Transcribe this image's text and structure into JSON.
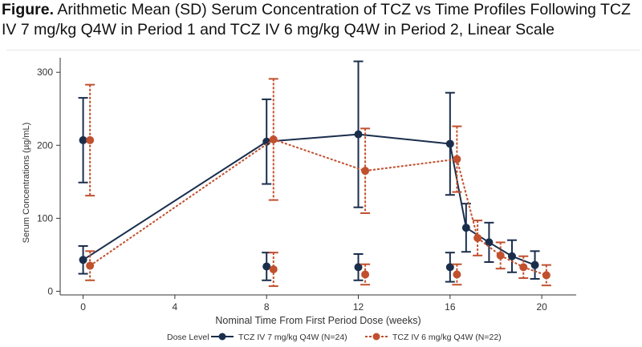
{
  "title_prefix": "Figure.",
  "title_text": "Arithmetic Mean (SD) Serum Concentration of TCZ vs Time Profiles Following TCZ IV 7 mg/kg Q4W in Period 1 and TCZ IV 6 mg/kg Q4W in Period 2, Linear Scale",
  "chart_data": {
    "type": "line",
    "xlabel": "Nominal Time From First Period Dose (weeks)",
    "ylabel": "Serum Concentrations (µg/mL)",
    "xlim": [
      -1,
      21.5
    ],
    "ylim": [
      -5,
      320
    ],
    "xticks": [
      0,
      4,
      8,
      12,
      16,
      20
    ],
    "yticks": [
      0,
      100,
      200,
      300
    ],
    "grid": false,
    "legend_title": "Dose Level",
    "legend_position": "bottom",
    "series": [
      {
        "name": "TCZ IV 7 mg/kg Q4W (N=24)",
        "color": "#1a2e4c",
        "line_style": "solid",
        "points": [
          {
            "x": 0,
            "y": 43,
            "sd": 19
          },
          {
            "x": 0,
            "y": 207,
            "sd": 58
          },
          {
            "x": 8,
            "y": 34,
            "sd": 19
          },
          {
            "x": 8,
            "y": 205,
            "sd": 58
          },
          {
            "x": 12,
            "y": 33,
            "sd": 18
          },
          {
            "x": 12,
            "y": 215,
            "sd": 100
          },
          {
            "x": 16,
            "y": 33,
            "sd": 20
          },
          {
            "x": 16,
            "y": 202,
            "sd": 70
          },
          {
            "x": 16.7,
            "y": 87,
            "sd": 33
          },
          {
            "x": 17.7,
            "y": 67,
            "sd": 27
          },
          {
            "x": 18.7,
            "y": 48,
            "sd": 22
          },
          {
            "x": 19.7,
            "y": 36,
            "sd": 19
          }
        ],
        "segments": [
          [
            0,
            3
          ],
          [
            3,
            5
          ],
          [
            5,
            7
          ],
          [
            7,
            8
          ],
          [
            8,
            9
          ],
          [
            9,
            10
          ],
          [
            10,
            11
          ]
        ]
      },
      {
        "name": "TCZ IV 6 mg/kg Q4W (N=22)",
        "color": "#c1502e",
        "line_style": "dotted",
        "points": [
          {
            "x": 0.3,
            "y": 35,
            "sd": 20
          },
          {
            "x": 0.3,
            "y": 207,
            "sd": 76
          },
          {
            "x": 8.3,
            "y": 30,
            "sd": 23
          },
          {
            "x": 8.3,
            "y": 208,
            "sd": 83
          },
          {
            "x": 12.3,
            "y": 23,
            "sd": 14
          },
          {
            "x": 12.3,
            "y": 165,
            "sd": 58
          },
          {
            "x": 16.3,
            "y": 23,
            "sd": 14
          },
          {
            "x": 16.3,
            "y": 181,
            "sd": 45
          },
          {
            "x": 17.2,
            "y": 73,
            "sd": 24
          },
          {
            "x": 18.2,
            "y": 49,
            "sd": 18
          },
          {
            "x": 19.2,
            "y": 33,
            "sd": 15
          },
          {
            "x": 20.2,
            "y": 22,
            "sd": 14
          }
        ],
        "segments": [
          [
            0,
            3
          ],
          [
            3,
            5
          ],
          [
            5,
            7
          ],
          [
            7,
            8
          ],
          [
            8,
            9
          ],
          [
            9,
            10
          ],
          [
            10,
            11
          ]
        ]
      }
    ]
  }
}
